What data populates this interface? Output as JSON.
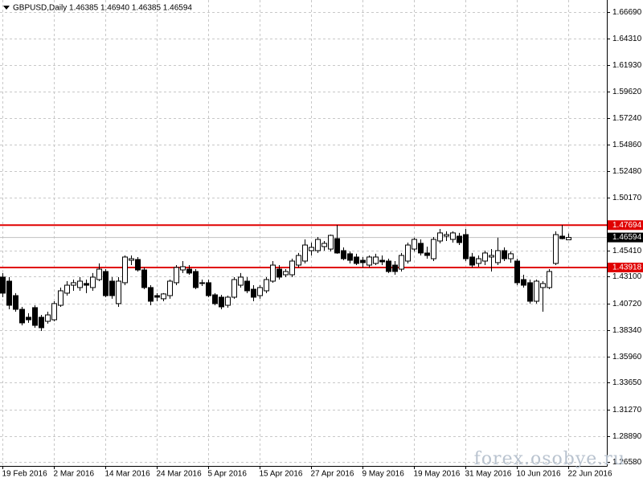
{
  "chart_data": {
    "type": "candlestick",
    "title": "GBPUSD,Daily 1.46385 1.46940 1.46385 1.46594",
    "watermark": "forex.osobye.ru",
    "categories": [
      "19 Feb 2016",
      null,
      null,
      null,
      null,
      null,
      null,
      null,
      "2 Mar 2016",
      null,
      null,
      null,
      null,
      null,
      null,
      null,
      "14 Mar 2016",
      null,
      null,
      null,
      null,
      null,
      null,
      null,
      "24 Mar 2016",
      null,
      null,
      null,
      null,
      null,
      null,
      null,
      "5 Apr 2016",
      null,
      null,
      null,
      null,
      null,
      null,
      null,
      "15 Apr 2016",
      null,
      null,
      null,
      null,
      null,
      null,
      null,
      "27 Apr 2016",
      null,
      null,
      null,
      null,
      null,
      null,
      null,
      "9 May 2016",
      null,
      null,
      null,
      null,
      null,
      null,
      null,
      "19 May 2016",
      null,
      null,
      null,
      null,
      null,
      null,
      null,
      "31 May 2016",
      null,
      null,
      null,
      null,
      null,
      null,
      null,
      "10 Jun 2016",
      null,
      null,
      null,
      null,
      null,
      null,
      null,
      "22 Jun 2016"
    ],
    "open": [
      1.4306,
      1.427,
      1.4141,
      1.4019,
      1.3948,
      1.4034,
      1.3948,
      1.3912,
      1.3926,
      1.4055,
      1.4163,
      1.4234,
      1.4213,
      1.4249,
      1.4213,
      1.4284,
      1.4356,
      1.427,
      1.407,
      1.4256,
      1.4456,
      1.4463,
      1.437,
      1.4213,
      1.4141,
      1.4113,
      1.4141,
      1.4256,
      1.437,
      1.4377,
      1.4356,
      1.4256,
      1.4256,
      1.4148,
      1.4127,
      1.4055,
      1.4127,
      1.4234,
      1.427,
      1.4198,
      1.4141,
      1.4184,
      1.427,
      1.4377,
      1.4327,
      1.4327,
      1.4413,
      1.4449,
      1.4542,
      1.4542,
      1.4578,
      1.4556,
      1.4649,
      1.4542,
      1.4514,
      1.4485,
      1.4456,
      1.4413,
      1.4428,
      1.4456,
      1.4449,
      1.4413,
      1.4377,
      1.4449,
      1.4556,
      1.4607,
      1.4521,
      1.447,
      1.4628,
      1.4671,
      1.4642,
      1.4671,
      1.4685,
      1.4485,
      1.4428,
      1.4449,
      1.4485,
      1.4435,
      1.4542,
      1.447,
      1.4449,
      1.4284,
      1.4256,
      1.4091,
      1.4213,
      1.4213,
      1.4428,
      1.4671,
      1.46385
    ],
    "high": [
      1.4342,
      1.4306,
      1.4163,
      1.4041,
      1.3984,
      1.4055,
      1.3969,
      1.3998,
      1.4091,
      1.4213,
      1.427,
      1.4284,
      1.4306,
      1.4284,
      1.4342,
      1.4428,
      1.4377,
      1.4306,
      1.4306,
      1.4499,
      1.4499,
      1.4485,
      1.4392,
      1.4234,
      1.4163,
      1.4163,
      1.4284,
      1.4413,
      1.4449,
      1.4413,
      1.4377,
      1.4284,
      1.4284,
      1.4163,
      1.4148,
      1.4141,
      1.4306,
      1.4342,
      1.4306,
      1.4234,
      1.4234,
      1.4306,
      1.4449,
      1.4413,
      1.4377,
      1.447,
      1.4521,
      1.4642,
      1.4614,
      1.4664,
      1.4628,
      1.4685,
      1.4771,
      1.4571,
      1.4535,
      1.4514,
      1.4485,
      1.4499,
      1.4514,
      1.4499,
      1.447,
      1.4449,
      1.4521,
      1.4614,
      1.4657,
      1.4642,
      1.4578,
      1.4664,
      1.4735,
      1.4714,
      1.4714,
      1.47,
      1.4735,
      1.4521,
      1.4499,
      1.4542,
      1.4556,
      1.4657,
      1.4571,
      1.4535,
      1.447,
      1.4327,
      1.4284,
      1.4284,
      1.427,
      1.4377,
      1.4714,
      1.4771,
      1.4694
    ],
    "low": [
      1.4127,
      1.4019,
      1.3998,
      1.3876,
      1.3898,
      1.3855,
      1.3826,
      1.3891,
      1.3912,
      1.4041,
      1.4141,
      1.4184,
      1.4184,
      1.4163,
      1.4184,
      1.427,
      1.4127,
      1.4113,
      1.4041,
      1.4234,
      1.4413,
      1.4356,
      1.4198,
      1.4055,
      1.4091,
      1.4091,
      1.4113,
      1.4234,
      1.4342,
      1.4327,
      1.4198,
      1.4227,
      1.4127,
      1.4055,
      1.4019,
      1.4034,
      1.4113,
      1.4213,
      1.4163,
      1.4091,
      1.4113,
      1.4163,
      1.4256,
      1.4284,
      1.4306,
      1.4306,
      1.4392,
      1.4428,
      1.4499,
      1.4521,
      1.4542,
      1.4535,
      1.4514,
      1.4456,
      1.4428,
      1.4413,
      1.4392,
      1.4392,
      1.4413,
      1.4413,
      1.4342,
      1.4327,
      1.4356,
      1.4428,
      1.4535,
      1.4499,
      1.447,
      1.4449,
      1.4607,
      1.4628,
      1.4614,
      1.4592,
      1.4449,
      1.4392,
      1.4399,
      1.4413,
      1.4356,
      1.4413,
      1.4449,
      1.4435,
      1.4234,
      1.4213,
      1.407,
      1.407,
      1.3998,
      1.4198,
      1.4413,
      1.4642,
      1.46385
    ],
    "close": [
      1.4163,
      1.4055,
      1.4019,
      1.3898,
      1.3926,
      1.3876,
      1.3855,
      1.3969,
      1.407,
      1.4184,
      1.4234,
      1.4256,
      1.427,
      1.4234,
      1.4306,
      1.4377,
      1.4141,
      1.4141,
      1.427,
      1.4485,
      1.447,
      1.437,
      1.4213,
      1.4091,
      1.4127,
      1.4156,
      1.427,
      1.4392,
      1.4399,
      1.4342,
      1.4213,
      1.4249,
      1.4141,
      1.407,
      1.4041,
      1.4127,
      1.4284,
      1.4306,
      1.4184,
      1.4127,
      1.4213,
      1.4284,
      1.4413,
      1.4306,
      1.4356,
      1.4449,
      1.4499,
      1.4592,
      1.4571,
      1.4642,
      1.4607,
      1.4678,
      1.4521,
      1.447,
      1.4456,
      1.4428,
      1.4435,
      1.4485,
      1.4485,
      1.4442,
      1.4356,
      1.4356,
      1.4499,
      1.4592,
      1.4642,
      1.4521,
      1.4499,
      1.4642,
      1.47,
      1.4685,
      1.47,
      1.4614,
      1.447,
      1.4413,
      1.447,
      1.4521,
      1.4499,
      1.4542,
      1.447,
      1.4514,
      1.4256,
      1.4234,
      1.4091,
      1.427,
      1.4249,
      1.4356,
      1.4685,
      1.4649,
      1.46594
    ],
    "up_color": "#ffffff",
    "down_color": "#000000",
    "outline_color": "#000000",
    "levels": [
      1.47694,
      1.43918
    ],
    "level_color": "#e00000",
    "current_price": 1.46594,
    "current_price_color": "#c0c0c0",
    "ylim": [
      1.2623,
      1.6776
    ],
    "yticks": [
      {
        "value": 1.6669,
        "label": "1.66690"
      },
      {
        "value": 1.6431,
        "label": "1.64310"
      },
      {
        "value": 1.6193,
        "label": "1.61930"
      },
      {
        "value": 1.5962,
        "label": "1.59620"
      },
      {
        "value": 1.5724,
        "label": "1.57240"
      },
      {
        "value": 1.5486,
        "label": "1.54860"
      },
      {
        "value": 1.5248,
        "label": "1.52480"
      },
      {
        "value": 1.5017,
        "label": "1.50170"
      },
      {
        "value": 1.4541,
        "label": "1.45410"
      },
      {
        "value": 1.431,
        "label": "1.43100"
      },
      {
        "value": 1.4072,
        "label": "1.40720"
      },
      {
        "value": 1.3834,
        "label": "1.38340"
      },
      {
        "value": 1.3596,
        "label": "1.35960"
      },
      {
        "value": 1.3365,
        "label": "1.33650"
      },
      {
        "value": 1.3127,
        "label": "1.31270"
      },
      {
        "value": 1.2889,
        "label": "1.28890"
      },
      {
        "value": 1.2658,
        "label": "1.26580"
      }
    ],
    "grid": true
  }
}
